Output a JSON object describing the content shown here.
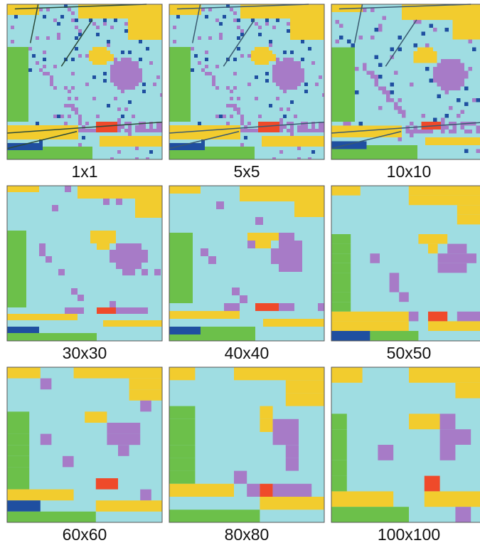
{
  "panels": [
    {
      "label": "1x1"
    },
    {
      "label": "5x5"
    },
    {
      "label": "10x10"
    },
    {
      "label": "30x30"
    },
    {
      "label": "40x40"
    },
    {
      "label": "50x50"
    },
    {
      "label": "60x60"
    },
    {
      "label": "80x80"
    },
    {
      "label": "100x100"
    }
  ]
}
